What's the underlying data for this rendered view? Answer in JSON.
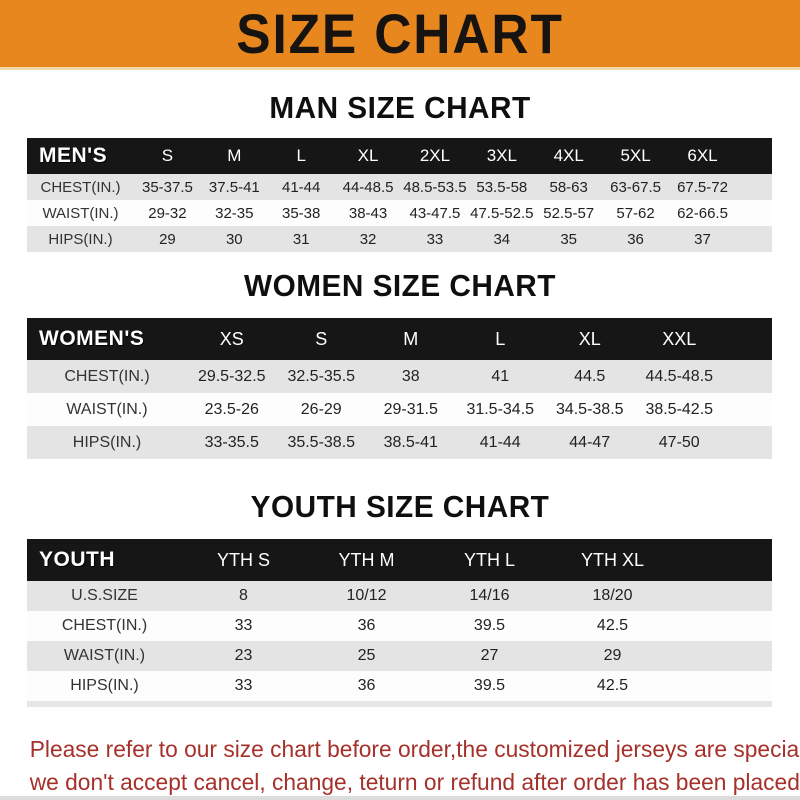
{
  "banner": {
    "title": "SIZE CHART",
    "bg_color": "#E8871E",
    "text_color": "#171310"
  },
  "colors": {
    "table_header_bg": "#161616",
    "table_header_text": "#ffffff",
    "stripe_row_bg": "#E4E4E4",
    "footer_text": "#A6302A"
  },
  "sections": [
    {
      "heading": "MAN SIZE CHART",
      "label": "MEN'S",
      "columns": [
        "S",
        "M",
        "L",
        "XL",
        "2XL",
        "3XL",
        "4XL",
        "5XL",
        "6XL"
      ],
      "rows": [
        {
          "label": "CHEST(IN.)",
          "values": [
            "35-37.5",
            "37.5-41",
            "41-44",
            "44-48.5",
            "48.5-53.5",
            "53.5-58",
            "58-63",
            "63-67.5",
            "67.5-72"
          ]
        },
        {
          "label": "WAIST(IN.)",
          "values": [
            "29-32",
            "32-35",
            "35-38",
            "38-43",
            "43-47.5",
            "47.5-52.5",
            "52.5-57",
            "57-62",
            "62-66.5"
          ]
        },
        {
          "label": "HIPS(IN.)",
          "values": [
            "29",
            "30",
            "31",
            "32",
            "33",
            "34",
            "35",
            "36",
            "37"
          ]
        }
      ]
    },
    {
      "heading": "WOMEN SIZE CHART",
      "label": "WOMEN'S",
      "columns": [
        "XS",
        "S",
        "M",
        "L",
        "XL",
        "XXL"
      ],
      "rows": [
        {
          "label": "CHEST(IN.)",
          "values": [
            "29.5-32.5",
            "32.5-35.5",
            "38",
            "41",
            "44.5",
            "44.5-48.5"
          ]
        },
        {
          "label": "WAIST(IN.)",
          "values": [
            "23.5-26",
            "26-29",
            "29-31.5",
            "31.5-34.5",
            "34.5-38.5",
            "38.5-42.5"
          ]
        },
        {
          "label": "HIPS(IN.)",
          "values": [
            "33-35.5",
            "35.5-38.5",
            "38.5-41",
            "41-44",
            "44-47",
            "47-50"
          ]
        }
      ]
    },
    {
      "heading": "YOUTH SIZE CHART",
      "label": "YOUTH",
      "columns": [
        "YTH S",
        "YTH M",
        "YTH L",
        "YTH XL"
      ],
      "rows": [
        {
          "label": "U.S.SIZE",
          "values": [
            "8",
            "10/12",
            "14/16",
            "18/20"
          ]
        },
        {
          "label": "CHEST(IN.)",
          "values": [
            "33",
            "36",
            "39.5",
            "42.5"
          ]
        },
        {
          "label": "WAIST(IN.)",
          "values": [
            "23",
            "25",
            "27",
            "29"
          ]
        },
        {
          "label": "HIPS(IN.)",
          "values": [
            "33",
            "36",
            "39.5",
            "42.5"
          ]
        }
      ]
    }
  ],
  "footer": {
    "line1": "Please refer to our size chart before order,the customized jerseys are special products,",
    "line2": "we don't accept cancel, change, teturn or refund after order has been placed!"
  }
}
